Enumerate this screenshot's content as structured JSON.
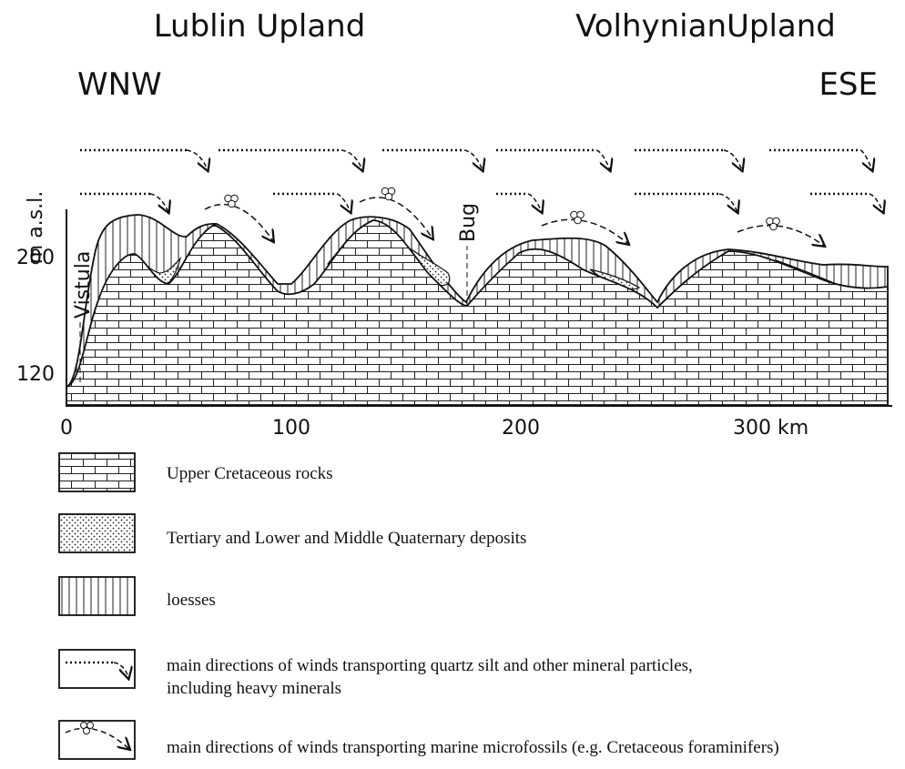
{
  "header": {
    "left_region": "Lublin Upland",
    "right_region": "VolhynianUpland",
    "west": "WNW",
    "east": "ESE"
  },
  "profile": {
    "y_axis": {
      "label": "m a.s.l.",
      "ticks": [
        "200",
        "120"
      ]
    },
    "x_axis": {
      "ticks": [
        "0",
        "100",
        "200",
        "300 km"
      ]
    },
    "places": [
      "Vistula",
      "Bug"
    ]
  },
  "legend": [
    {
      "lines": [
        "Upper Cretaceous rocks"
      ]
    },
    {
      "lines": [
        "Tertiary and Lower and Middle Quaternary deposits"
      ]
    },
    {
      "lines": [
        "loesses"
      ]
    },
    {
      "lines": [
        "main directions of winds transporting quartz silt and other mineral particles,",
        "including heavy minerals"
      ]
    },
    {
      "lines": [
        "main directions of winds transporting marine microfossils (e.g. Cretaceous foraminifers)"
      ]
    }
  ]
}
